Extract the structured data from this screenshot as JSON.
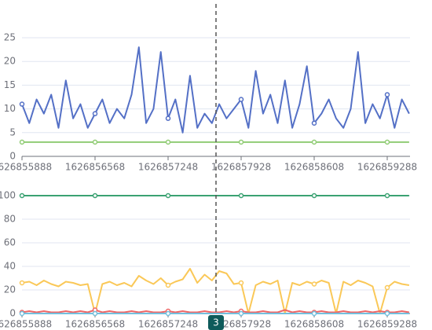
{
  "chart_data": [
    {
      "type": "line",
      "xlim": [
        1626855888,
        1626859500
      ],
      "xticks": [
        1626855888,
        1626856568,
        1626857248,
        1626857928,
        1626858608,
        1626859288
      ],
      "ylim": [
        0,
        25
      ],
      "yticks": [
        0,
        5,
        10,
        15,
        20,
        25
      ],
      "grid": true,
      "x": [
        1626855888,
        1626855956,
        1626856024,
        1626856092,
        1626856160,
        1626856228,
        1626856296,
        1626856364,
        1626856432,
        1626856500,
        1626856568,
        1626856636,
        1626856704,
        1626856772,
        1626856840,
        1626856908,
        1626856976,
        1626857044,
        1626857112,
        1626857180,
        1626857248,
        1626857316,
        1626857384,
        1626857452,
        1626857520,
        1626857588,
        1626857656,
        1626857724,
        1626857792,
        1626857860,
        1626857928,
        1626857996,
        1626858064,
        1626858132,
        1626858200,
        1626858268,
        1626858336,
        1626858404,
        1626858472,
        1626858540,
        1626858608,
        1626858676,
        1626858744,
        1626858812,
        1626858880,
        1626858948,
        1626859016,
        1626859084,
        1626859152,
        1626859220,
        1626859288,
        1626859356,
        1626859424,
        1626859492
      ],
      "series": [
        {
          "color": "#5470c6",
          "values": [
            11,
            7,
            12,
            9,
            13,
            6,
            16,
            8,
            11,
            6,
            9,
            12,
            7,
            10,
            8,
            13,
            23,
            7,
            10,
            22,
            8,
            12,
            5,
            17,
            6,
            9,
            7,
            11,
            8,
            10,
            12,
            6,
            18,
            9,
            13,
            7,
            16,
            6,
            11,
            19,
            7,
            9,
            12,
            8,
            6,
            10,
            22,
            7,
            11,
            8,
            13,
            6,
            12,
            9
          ]
        },
        {
          "color": "#91cc75",
          "values": [
            3,
            3,
            3,
            3,
            3,
            3,
            3,
            3,
            3,
            3,
            3,
            3,
            3,
            3,
            3,
            3,
            3,
            3,
            3,
            3,
            3,
            3,
            3,
            3,
            3,
            3,
            3,
            3,
            3,
            3,
            3,
            3,
            3,
            3,
            3,
            3,
            3,
            3,
            3,
            3,
            3,
            3,
            3,
            3,
            3,
            3,
            3,
            3,
            3,
            3,
            3,
            3,
            3,
            3
          ]
        }
      ]
    },
    {
      "type": "line",
      "xlim": [
        1626855888,
        1626859500
      ],
      "xticks": [
        1626855888,
        1626856568,
        1626857248,
        1626857928,
        1626858608,
        1626859288
      ],
      "ylim": [
        0,
        100
      ],
      "yticks": [
        0,
        20,
        40,
        60,
        80,
        100
      ],
      "grid": true,
      "x": [
        1626855888,
        1626855956,
        1626856024,
        1626856092,
        1626856160,
        1626856228,
        1626856296,
        1626856364,
        1626856432,
        1626856500,
        1626856568,
        1626856636,
        1626856704,
        1626856772,
        1626856840,
        1626856908,
        1626856976,
        1626857044,
        1626857112,
        1626857180,
        1626857248,
        1626857316,
        1626857384,
        1626857452,
        1626857520,
        1626857588,
        1626857656,
        1626857724,
        1626857792,
        1626857860,
        1626857928,
        1626857996,
        1626858064,
        1626858132,
        1626858200,
        1626858268,
        1626858336,
        1626858404,
        1626858472,
        1626858540,
        1626858608,
        1626858676,
        1626858744,
        1626858812,
        1626858880,
        1626858948,
        1626859016,
        1626859084,
        1626859152,
        1626859220,
        1626859288,
        1626859356,
        1626859424,
        1626859492
      ],
      "series": [
        {
          "color": "#3ba272",
          "values": [
            100,
            100,
            100,
            100,
            100,
            100,
            100,
            100,
            100,
            100,
            100,
            100,
            100,
            100,
            100,
            100,
            100,
            100,
            100,
            100,
            100,
            100,
            100,
            100,
            100,
            100,
            100,
            100,
            100,
            100,
            100,
            100,
            100,
            100,
            100,
            100,
            100,
            100,
            100,
            100,
            100,
            100,
            100,
            100,
            100,
            100,
            100,
            100,
            100,
            100,
            100,
            100,
            100,
            100
          ]
        },
        {
          "color": "#fac858",
          "values": [
            26,
            27,
            24,
            28,
            25,
            23,
            27,
            26,
            24,
            25,
            0,
            25,
            27,
            24,
            26,
            23,
            32,
            28,
            25,
            30,
            24,
            27,
            29,
            38,
            26,
            33,
            28,
            36,
            34,
            25,
            26,
            0,
            24,
            27,
            25,
            28,
            0,
            26,
            24,
            27,
            25,
            28,
            26,
            0,
            27,
            24,
            28,
            26,
            23,
            0,
            22,
            27,
            25,
            24
          ]
        },
        {
          "color": "#ee6666",
          "values": [
            1,
            2,
            1,
            2,
            1,
            1,
            2,
            1,
            2,
            1,
            3,
            1,
            2,
            1,
            1,
            2,
            1,
            2,
            1,
            1,
            2,
            1,
            2,
            1,
            1,
            2,
            1,
            1,
            2,
            1,
            2,
            1,
            1,
            2,
            1,
            1,
            3,
            1,
            2,
            1,
            1,
            2,
            1,
            1,
            2,
            1,
            1,
            2,
            1,
            2,
            1,
            1,
            2,
            1
          ]
        },
        {
          "color": "#73c0de",
          "values": [
            0,
            0,
            0,
            0,
            0,
            0,
            0,
            0,
            0,
            0,
            0,
            0,
            0,
            0,
            0,
            0,
            0,
            0,
            0,
            0,
            0,
            0,
            0,
            0,
            0,
            0,
            0,
            0,
            0,
            0,
            0,
            0,
            0,
            0,
            0,
            0,
            0,
            0,
            0,
            0,
            0,
            0,
            0,
            0,
            0,
            0,
            0,
            0,
            0,
            0,
            0,
            0,
            0,
            0
          ]
        }
      ],
      "axis_pointer": {
        "value": 1626857694,
        "label": "3"
      }
    }
  ]
}
